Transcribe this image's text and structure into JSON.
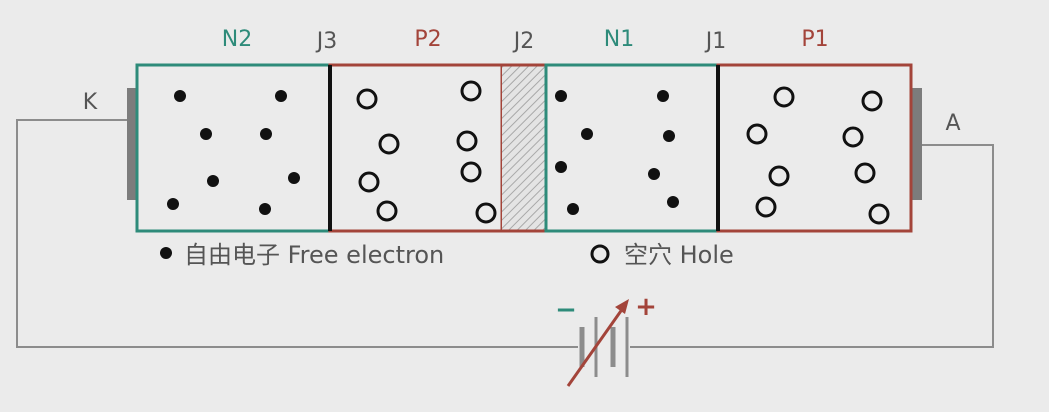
{
  "regions": {
    "n2": {
      "label": "N2",
      "color": "#2e8b7a"
    },
    "p2": {
      "label": "P2",
      "color": "#a3443a"
    },
    "n1": {
      "label": "N1",
      "color": "#2e8b7a"
    },
    "p1": {
      "label": "P1",
      "color": "#a3443a"
    }
  },
  "junctions": {
    "j3": "J3",
    "j2": "J2",
    "j1": "J1"
  },
  "terminals": {
    "cathode": "K",
    "anode": "A"
  },
  "legend": {
    "electron_label": "自由电子 Free electron",
    "hole_label": "空穴 Hole"
  },
  "battery": {
    "minus": "−",
    "plus": "+",
    "minus_color": "#2e8b7a",
    "plus_color": "#a3443a"
  },
  "colors": {
    "wire": "#8c8c8c",
    "text": "#555555",
    "carrier": "#111111"
  }
}
